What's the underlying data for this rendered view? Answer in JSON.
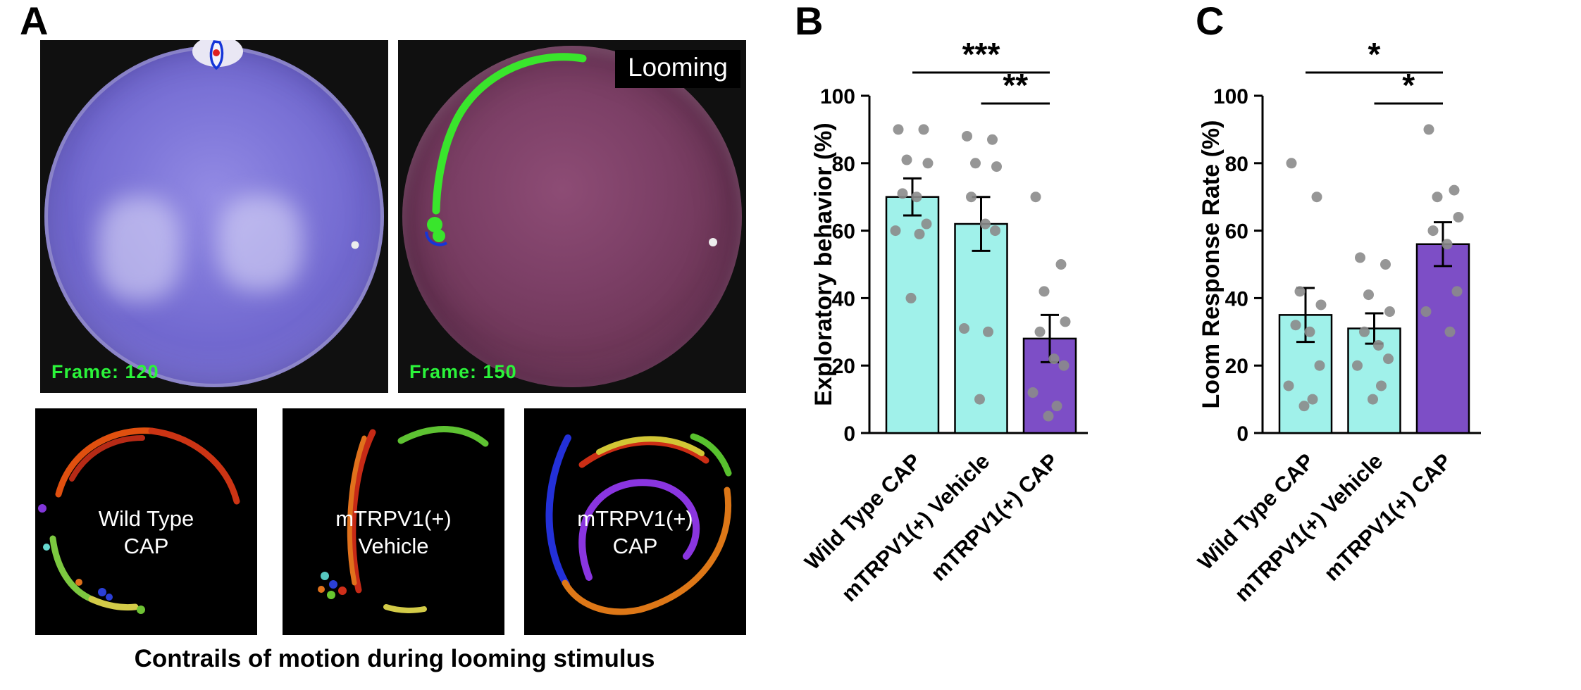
{
  "panels": {
    "a": "A",
    "b": "B",
    "c": "C"
  },
  "panel_a": {
    "left_dish": {
      "frame_label": "Frame: 120"
    },
    "right_dish": {
      "frame_label": "Frame: 150",
      "looming_label": "Looming"
    },
    "contrail_squares": [
      {
        "line1": "Wild Type",
        "line2": "CAP"
      },
      {
        "line1": "mTRPV1(+)",
        "line2": "Vehicle"
      },
      {
        "line1": "mTRPV1(+)",
        "line2": "CAP"
      }
    ],
    "caption": "Contrails of motion during looming stimulus",
    "colors": {
      "frame_text": "#2bf43a",
      "trail_green": "#39e52c",
      "tracker_outline": "#1535d8",
      "tracker_dot": "#e02020"
    }
  },
  "chart_data": [
    {
      "id": "B",
      "type": "bar",
      "title": "",
      "ylabel": "Exploratory behavior (%)",
      "xlabel": "",
      "ylim": [
        0,
        100
      ],
      "yticks": [
        0,
        20,
        40,
        60,
        80,
        100
      ],
      "grid": false,
      "legend": "none",
      "categories": [
        "Wild Type CAP",
        "mTRPV1(+) Vehicle",
        "mTRPV1(+) CAP"
      ],
      "values": [
        70,
        62,
        28
      ],
      "errors": [
        5.5,
        8,
        7
      ],
      "bar_colors": [
        "#a0f1ea",
        "#a0f1ea",
        "#7d4ec6"
      ],
      "point_color": "#8b8b8b",
      "points": [
        [
          90,
          90,
          81,
          80,
          71,
          70,
          62,
          60,
          59,
          40
        ],
        [
          88,
          87,
          80,
          79,
          70,
          62,
          60,
          31,
          30,
          10
        ],
        [
          70,
          50,
          42,
          33,
          30,
          22,
          20,
          12,
          8,
          5
        ]
      ],
      "significance": [
        {
          "from": 0,
          "to": 2,
          "label": "***",
          "level": 1
        },
        {
          "from": 1,
          "to": 2,
          "label": "**",
          "level": 2
        }
      ]
    },
    {
      "id": "C",
      "type": "bar",
      "title": "",
      "ylabel": "Loom Response Rate (%)",
      "xlabel": "",
      "ylim": [
        0,
        100
      ],
      "yticks": [
        0,
        20,
        40,
        60,
        80,
        100
      ],
      "grid": false,
      "legend": "none",
      "categories": [
        "Wild Type CAP",
        "mTRPV1(+) Vehicle",
        "mTRPV1(+) CAP"
      ],
      "values": [
        35,
        31,
        56
      ],
      "errors": [
        8,
        4.5,
        6.5
      ],
      "bar_colors": [
        "#a0f1ea",
        "#a0f1ea",
        "#7d4ec6"
      ],
      "point_color": "#8b8b8b",
      "points": [
        [
          80,
          70,
          42,
          38,
          32,
          30,
          20,
          14,
          10,
          8
        ],
        [
          52,
          50,
          41,
          36,
          30,
          26,
          22,
          20,
          14,
          10
        ],
        [
          90,
          72,
          70,
          64,
          60,
          56,
          42,
          36,
          30
        ]
      ],
      "significance": [
        {
          "from": 0,
          "to": 2,
          "label": "*",
          "level": 1
        },
        {
          "from": 1,
          "to": 2,
          "label": "*",
          "level": 2
        }
      ]
    }
  ]
}
